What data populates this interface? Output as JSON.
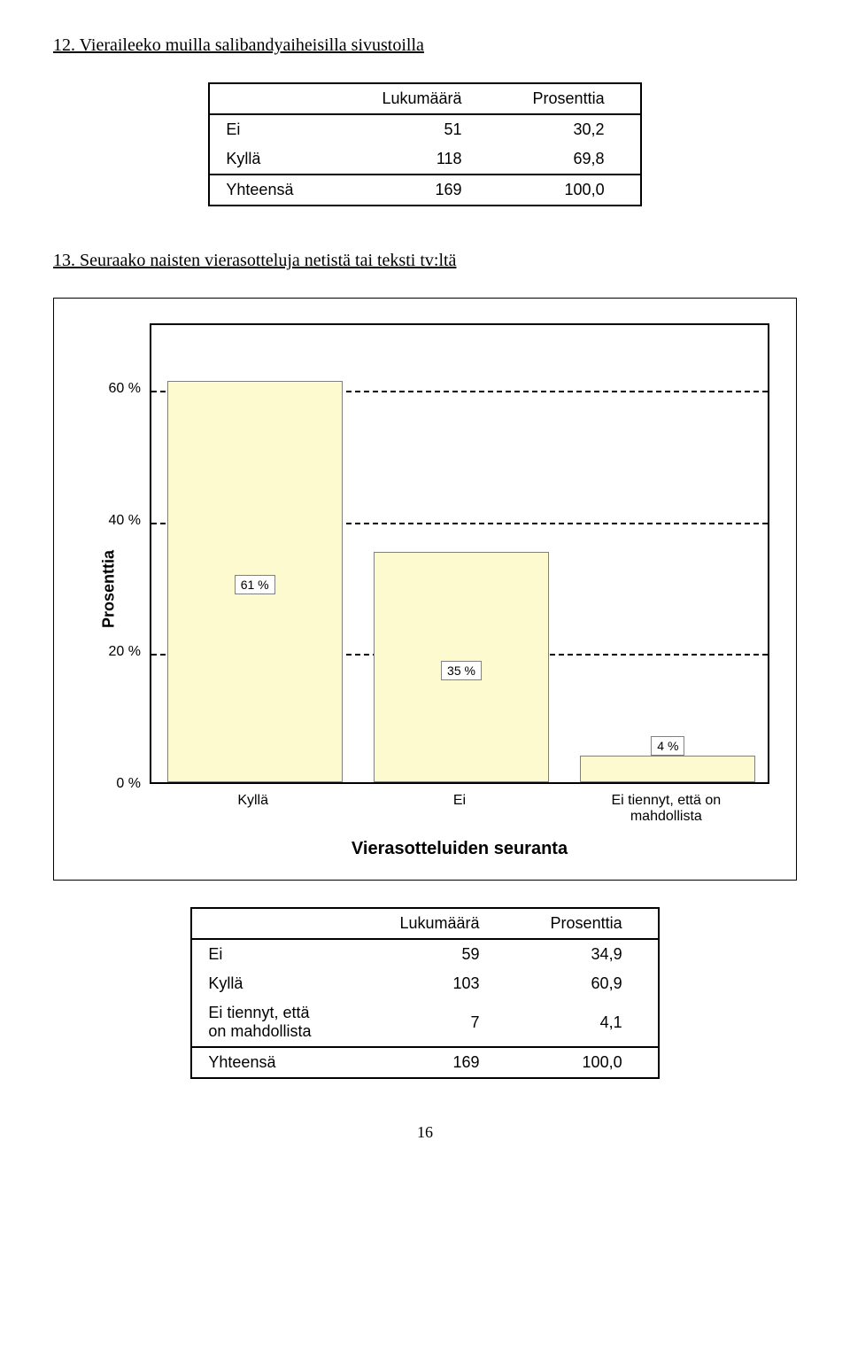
{
  "section12": {
    "title": "12. Vieraileeko muilla salibandyaiheisilla sivustoilla",
    "table": {
      "columns": [
        "",
        "Lukumäärä",
        "Prosenttia"
      ],
      "rows": [
        {
          "label": "Ei",
          "count": "51",
          "pct": "30,2"
        },
        {
          "label": "Kyllä",
          "count": "118",
          "pct": "69,8"
        },
        {
          "label": "Yhteensä",
          "count": "169",
          "pct": "100,0"
        }
      ]
    }
  },
  "section13": {
    "title": "13. Seuraako naisten vierasotteluja netistä tai teksti tv:ltä",
    "chart": {
      "type": "bar",
      "y_label": "Prosenttia",
      "x_label": "Vierasotteluiden seuranta",
      "y_ticks": [
        {
          "value": 0,
          "label": "0 %"
        },
        {
          "value": 20,
          "label": "20 %"
        },
        {
          "value": 40,
          "label": "40 %"
        },
        {
          "value": 60,
          "label": "60 %"
        }
      ],
      "y_max": 70,
      "bar_color": "#fdfad0",
      "bar_border": "#808080",
      "background": "#ffffff",
      "bars": [
        {
          "category": "Kyllä",
          "value": 61,
          "label": "61 %"
        },
        {
          "category": "Ei",
          "value": 35,
          "label": "35 %"
        },
        {
          "category": "Ei tiennyt, että on mahdollista",
          "value": 4,
          "label": "4 %"
        }
      ]
    },
    "table": {
      "columns": [
        "",
        "Lukumäärä",
        "Prosenttia"
      ],
      "rows": [
        {
          "label": "Ei",
          "count": "59",
          "pct": "34,9"
        },
        {
          "label": "Kyllä",
          "count": "103",
          "pct": "60,9"
        },
        {
          "label": "Ei tiennyt, että\non mahdollista",
          "count": "7",
          "pct": "4,1"
        },
        {
          "label": "Yhteensä",
          "count": "169",
          "pct": "100,0"
        }
      ]
    }
  },
  "page_number": "16"
}
